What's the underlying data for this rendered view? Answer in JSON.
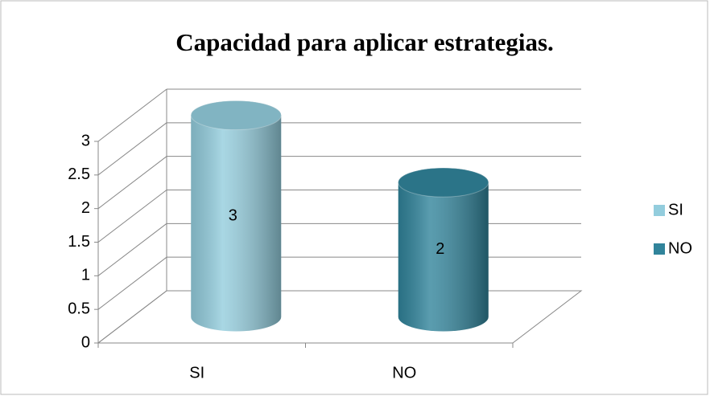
{
  "chart_data": {
    "type": "bar3d",
    "title": "Capacidad para aplicar estrategias.",
    "categories": [
      "SI",
      "NO"
    ],
    "values": [
      3,
      2
    ],
    "colors": [
      "#93cddd",
      "#31849b"
    ],
    "ylim": [
      0,
      3
    ],
    "yticks": [
      0,
      0.5,
      1,
      1.5,
      2,
      2.5,
      3
    ],
    "grid": true,
    "legend": "right"
  }
}
